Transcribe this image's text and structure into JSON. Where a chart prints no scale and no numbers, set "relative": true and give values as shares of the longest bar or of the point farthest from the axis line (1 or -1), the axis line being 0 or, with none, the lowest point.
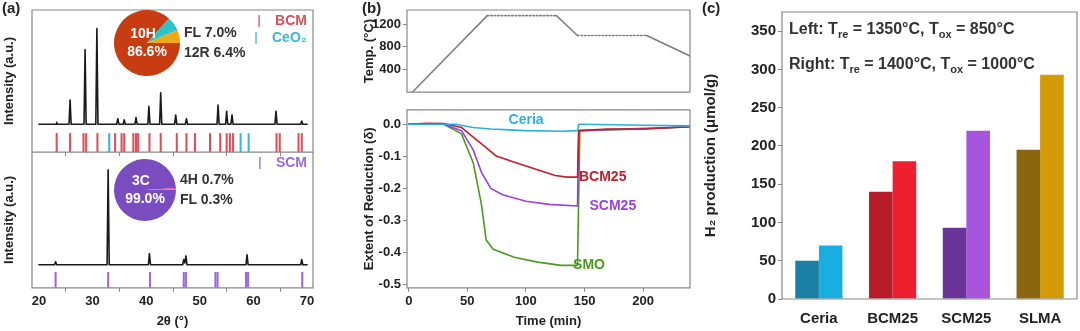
{
  "chart_data": [
    {
      "type": "line",
      "title": "(a)",
      "ylabel": "Intensity (a.u.)",
      "relative": true,
      "xlim": [
        18.7,
        71.1
      ],
      "xticks": [
        20,
        30,
        40,
        50,
        60,
        70
      ],
      "tick_labels": false,
      "legend": "top right",
      "series": [
        {
          "type": "line",
          "color": "#1a1a1a",
          "x": [
            20,
            23.2,
            23.3,
            23.4,
            25.6,
            25.8,
            26.0,
            28.4,
            28.6,
            28.8,
            30.6,
            30.8,
            31.0,
            34.5,
            34.7,
            34.9,
            35.7,
            35.9,
            36.1,
            37.9,
            38.1,
            38.3,
            40.3,
            40.5,
            40.7,
            42.5,
            42.7,
            42.9,
            45.3,
            45.5,
            45.7,
            47.3,
            47.5,
            47.7,
            53.2,
            53.4,
            53.6,
            54.8,
            55.0,
            55.2,
            55.8,
            56.0,
            56.2,
            64.0,
            64.2,
            64.4,
            68.8,
            69.0,
            69.2,
            70
          ],
          "values": [
            0.225,
            0.225,
            0.24,
            0.225,
            0.225,
            0.42,
            0.225,
            0.225,
            0.83,
            0.225,
            0.225,
            1,
            0.225,
            0.225,
            0.27,
            0.225,
            0.225,
            0.26,
            0.225,
            0.225,
            0.28,
            0.225,
            0.225,
            0.37,
            0.225,
            0.225,
            0.48,
            0.225,
            0.225,
            0.3,
            0.225,
            0.225,
            0.27,
            0.225,
            0.225,
            0.38,
            0.225,
            0.225,
            0.33,
            0.225,
            0.225,
            0.3,
            0.225,
            0.225,
            0.33,
            0.225,
            0.225,
            0.25,
            0.225,
            0.225
          ]
        },
        {
          "type": "bar",
          "name": "BCM",
          "color": "#d9505a",
          "x": [
            23.3,
            25.8,
            28.3,
            28.8,
            30.9,
            34.2,
            35.4,
            35.9,
            37.6,
            38.1,
            38.5,
            40.6,
            42.7,
            45.7,
            47.5,
            49.1,
            51.9,
            53.8,
            55.0,
            55.6,
            56.2,
            64.3,
            64.9,
            68.4,
            69.0
          ],
          "values": [
            0.15,
            0.15,
            0.15,
            0.15,
            0.15,
            0.15,
            0.15,
            0.15,
            0.15,
            0.15,
            0.15,
            0.15,
            0.15,
            0.15,
            0.15,
            0.15,
            0.15,
            0.15,
            0.15,
            0.15,
            0.15,
            0.15,
            0.15,
            0.15,
            0.15
          ]
        },
        {
          "type": "bar",
          "name": "CeO₂",
          "color": "#3ab8d8",
          "x": [
            33.1,
            57.6,
            59.1
          ],
          "values": [
            0.15,
            0.15,
            0.15
          ]
        }
      ]
    },
    {
      "type": "pie",
      "categories": [
        "10H",
        "FL",
        "12R"
      ],
      "values": [
        86.6,
        7.0,
        6.4
      ],
      "colors": [
        "#c83c12",
        "#2cc4c8",
        "#f0a818"
      ],
      "value_labels": [
        "86.6%",
        "7.0%",
        "6.4%"
      ]
    },
    {
      "type": "line",
      "xlabel": "2θ (°)",
      "ylabel": "Intensity (a.u.)",
      "relative": true,
      "xlim": [
        18.7,
        71.1
      ],
      "xticks": [
        20,
        30,
        40,
        50,
        60,
        70
      ],
      "tick_labels": "x",
      "legend": "top right",
      "series": [
        {
          "type": "line",
          "color": "#1a1a1a",
          "x": [
            20,
            22.9,
            23.1,
            23.3,
            32.7,
            32.9,
            33.1,
            40.4,
            40.6,
            40.8,
            46.8,
            47.0,
            47.2,
            47.4,
            47.6,
            58.6,
            58.8,
            59.0,
            68.8,
            69.0,
            69.2,
            70
          ],
          "values": [
            0.195,
            0.195,
            0.22,
            0.195,
            0.195,
            1,
            0.195,
            0.195,
            0.29,
            0.195,
            0.195,
            0.24,
            0.21,
            0.27,
            0.195,
            0.195,
            0.28,
            0.195,
            0.195,
            0.24,
            0.195,
            0.195
          ]
        },
        {
          "type": "bar",
          "name": "SCM",
          "color": "#9a6ae0",
          "x": [
            23.1,
            32.9,
            40.7,
            47.0,
            47.4,
            52.9,
            53.3,
            58.6,
            59.0,
            69.1
          ],
          "values": [
            0.13,
            0.13,
            0.13,
            0.13,
            0.13,
            0.13,
            0.13,
            0.13,
            0.13,
            0.13
          ]
        }
      ]
    },
    {
      "type": "pie",
      "categories": [
        "3C",
        "4H",
        "FL"
      ],
      "values": [
        99.0,
        0.7,
        0.3
      ],
      "colors": [
        "#7a4cc0",
        "#e040a0",
        "#40c0c0"
      ],
      "value_labels": [
        "99.0%",
        "0.7%",
        "0.3%"
      ]
    },
    {
      "type": "line",
      "title": "(b)",
      "ylabel": "Temp. (°C)",
      "xlim": [
        -1.5,
        240
      ],
      "ylim": [
        0,
        1450
      ],
      "yticks": [
        400,
        800,
        1200
      ],
      "tick_labels": "y",
      "series": [
        {
          "color": "#808080",
          "line_style": "solid",
          "x": [
            3,
            67
          ],
          "values": [
            0,
            1350
          ]
        },
        {
          "color": "#808080",
          "line_style": "dotted",
          "x": [
            67,
            126
          ],
          "values": [
            1350,
            1350
          ]
        },
        {
          "color": "#808080",
          "line_style": "solid",
          "x": [
            126,
            144
          ],
          "values": [
            1350,
            1000
          ]
        },
        {
          "color": "#808080",
          "line_style": "dotted",
          "x": [
            144,
            203
          ],
          "values": [
            1000,
            1000
          ]
        },
        {
          "color": "#808080",
          "line_style": "solid",
          "x": [
            203,
            240
          ],
          "values": [
            1000,
            640
          ]
        }
      ]
    },
    {
      "type": "line",
      "xlabel": "Time (min)",
      "ylabel": "Extent of Reduction (δ)",
      "xlim": [
        -1.5,
        240
      ],
      "xticks": [
        0,
        50,
        100,
        150,
        200
      ],
      "ylim": [
        -0.51,
        0.045
      ],
      "yticks": [
        {
          "value": -0.5,
          "label": "-0.5"
        },
        {
          "value": -0.4,
          "label": "-0.4"
        },
        {
          "value": -0.3,
          "label": "-0.3"
        },
        {
          "value": -0.2,
          "label": "-0.2"
        },
        {
          "value": -0.1,
          "label": "-0.1"
        },
        {
          "value": 0,
          "label": "0.0"
        }
      ],
      "series": [
        {
          "name": "Ceria",
          "color": "#2bb0e0",
          "x": [
            0,
            40,
            55,
            70,
            100,
            130,
            144,
            145,
            150,
            200,
            240
          ],
          "values": [
            0,
            0,
            -0.01,
            -0.015,
            -0.02,
            -0.022,
            -0.02,
            0,
            0,
            -0.003,
            -0.005
          ]
        },
        {
          "name": "BCM25",
          "color": "#c0202a",
          "x": [
            0,
            15,
            30,
            45,
            55,
            65,
            75,
            100,
            125,
            135,
            144,
            145,
            170,
            200,
            240
          ],
          "values": [
            0,
            0.003,
            0.002,
            -0.01,
            -0.04,
            -0.07,
            -0.1,
            -0.13,
            -0.16,
            -0.165,
            -0.165,
            -0.02,
            -0.015,
            -0.015,
            -0.008
          ]
        },
        {
          "name": "SCM25",
          "color": "#9a40e0",
          "x": [
            0,
            30,
            45,
            55,
            62,
            70,
            80,
            100,
            120,
            144,
            145,
            240
          ],
          "values": [
            0,
            0,
            -0.02,
            -0.08,
            -0.15,
            -0.2,
            -0.22,
            -0.24,
            -0.25,
            -0.255,
            -0.02,
            -0.008
          ]
        },
        {
          "name": "SMO",
          "color": "#4a9a20",
          "x": [
            0,
            30,
            45,
            55,
            62,
            66,
            72,
            90,
            110,
            130,
            144,
            146,
            200,
            240
          ],
          "values": [
            0,
            0,
            -0.03,
            -0.12,
            -0.25,
            -0.36,
            -0.39,
            -0.415,
            -0.43,
            -0.44,
            -0.44,
            -0.02,
            -0.015,
            -0.008
          ]
        }
      ]
    },
    {
      "type": "bar",
      "title": "(c)",
      "ylabel": "H₂ production (μmol/g)",
      "categories": [
        "Ceria",
        "BCM25",
        "SCM25",
        "SLMA"
      ],
      "ylim": [
        0,
        375
      ],
      "yticks": [
        0,
        50,
        100,
        150,
        200,
        250,
        300,
        350
      ],
      "annotations": [
        "Left: T$_{re}$ = 1350°C, T$_{ox}$ = 850°C",
        "Right: T$_{re}$ = 1400°C, T$_{ox}$ = 1000°C"
      ],
      "series": [
        {
          "colors": [
            "#1a7fa5",
            "#b81c2a",
            "#6a3499",
            "#8a6510"
          ],
          "values": [
            50,
            140,
            93,
            195
          ]
        },
        {
          "colors": [
            "#18aee0",
            "#ee2030",
            "#a855dd",
            "#d49a08"
          ],
          "values": [
            70,
            180,
            220,
            293
          ]
        }
      ]
    }
  ]
}
